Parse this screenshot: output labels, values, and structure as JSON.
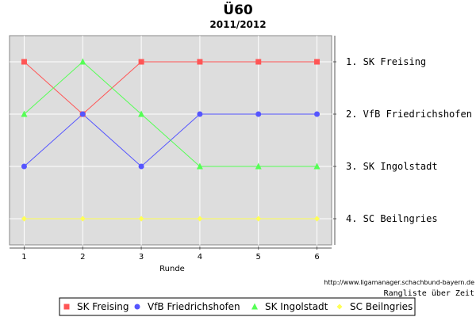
{
  "chart_data": {
    "type": "line",
    "title": "Ü60",
    "subtitle": "2011/2012",
    "xlabel": "Runde",
    "ylabel": "",
    "x": [
      1,
      2,
      3,
      4,
      5,
      6
    ],
    "xlim": [
      0.75,
      6.25
    ],
    "ylim": [
      0.5,
      4.5
    ],
    "y_inverted": true,
    "grid": true,
    "legend_position": "bottom",
    "rank_labels": [
      "1. SK Freising",
      "2. VfB Friedrichshofen",
      "3. SK Ingolstadt",
      "4. SC Beilngries"
    ],
    "series": [
      {
        "name": "SK Freising",
        "values": [
          1,
          2,
          1,
          1,
          1,
          1
        ],
        "color": "#ff5555",
        "marker": "square"
      },
      {
        "name": "VfB Friedrichshofen",
        "values": [
          3,
          2,
          3,
          2,
          2,
          2
        ],
        "color": "#5555ff",
        "marker": "circle"
      },
      {
        "name": "SK Ingolstadt",
        "values": [
          2,
          1,
          2,
          3,
          3,
          3
        ],
        "color": "#55ff55",
        "marker": "triangle"
      },
      {
        "name": "SC Beilngries",
        "values": [
          4,
          4,
          4,
          4,
          4,
          4
        ],
        "color": "#ffff55",
        "marker": "diamond"
      }
    ],
    "source_text": "http://www.ligamanager.schachbund-bayern.de",
    "caption": "Rangliste über Zeit",
    "plot_background": "#dddddd"
  }
}
